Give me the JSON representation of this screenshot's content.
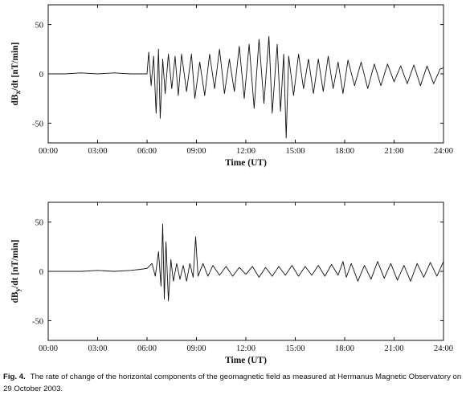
{
  "chart_data": [
    {
      "type": "line",
      "title": "",
      "xlabel": "Time (UT)",
      "ylabel": "dBx/dt [nT/min]",
      "ylabel_main": "dB",
      "ylabel_sub": "x",
      "ylabel_rest": "/dt [nT/min]",
      "xlim": [
        0,
        24
      ],
      "ylim": [
        -70,
        70
      ],
      "xticks": [
        0,
        3,
        6,
        9,
        12,
        15,
        18,
        21,
        24
      ],
      "xtick_labels": [
        "00:00",
        "03:00",
        "06:00",
        "09:00",
        "12:00",
        "15:00",
        "18:00",
        "21:00",
        "24:00"
      ],
      "yticks": [
        -50,
        0,
        50
      ],
      "ytick_labels": [
        "-50",
        "0",
        "50"
      ],
      "grid": false,
      "series": [
        {
          "color": "#111111",
          "x": [
            0,
            1,
            2,
            3,
            4,
            5,
            6,
            6.1,
            6.25,
            6.4,
            6.55,
            6.7,
            6.8,
            6.95,
            7.1,
            7.3,
            7.5,
            7.7,
            7.9,
            8.1,
            8.4,
            8.7,
            8.9,
            9.2,
            9.5,
            9.8,
            10.1,
            10.4,
            10.7,
            11,
            11.3,
            11.6,
            11.9,
            12.2,
            12.5,
            12.8,
            13.1,
            13.4,
            13.6,
            13.9,
            14.1,
            14.3,
            14.45,
            14.6,
            14.9,
            15.2,
            15.5,
            15.8,
            16.1,
            16.4,
            16.7,
            17,
            17.3,
            17.6,
            17.9,
            18.2,
            18.6,
            19,
            19.4,
            19.8,
            20.2,
            20.6,
            21,
            21.4,
            21.8,
            22.2,
            22.6,
            23,
            23.4,
            23.8,
            24
          ],
          "y": [
            0,
            0,
            1,
            0,
            1,
            0,
            0,
            22,
            -12,
            18,
            -40,
            25,
            -45,
            15,
            -20,
            20,
            -15,
            18,
            -22,
            20,
            -18,
            20,
            -25,
            12,
            -22,
            20,
            -15,
            25,
            -20,
            15,
            -18,
            28,
            -25,
            30,
            -35,
            35,
            -30,
            38,
            -40,
            30,
            -38,
            20,
            -65,
            18,
            -22,
            20,
            -15,
            15,
            -20,
            15,
            -18,
            18,
            -15,
            12,
            -20,
            14,
            -12,
            12,
            -15,
            10,
            -12,
            10,
            -8,
            8,
            -10,
            9,
            -12,
            8,
            -10,
            5,
            6
          ]
        }
      ]
    },
    {
      "type": "line",
      "title": "",
      "xlabel": "Time (UT)",
      "ylabel": "dBy/dt [nT/min]",
      "ylabel_main": "dB",
      "ylabel_sub": "y",
      "ylabel_rest": "/dt [nT/min]",
      "xlim": [
        0,
        24
      ],
      "ylim": [
        -70,
        70
      ],
      "xticks": [
        0,
        3,
        6,
        9,
        12,
        15,
        18,
        21,
        24
      ],
      "xtick_labels": [
        "00:00",
        "03:00",
        "06:00",
        "09:00",
        "12:00",
        "15:00",
        "18:00",
        "21:00",
        "24:00"
      ],
      "yticks": [
        -50,
        0,
        50
      ],
      "ytick_labels": [
        "-50",
        "0",
        "50"
      ],
      "grid": false,
      "series": [
        {
          "color": "#111111",
          "x": [
            0,
            1,
            2,
            3,
            4,
            5,
            5.6,
            6,
            6.3,
            6.5,
            6.7,
            6.85,
            6.95,
            7.05,
            7.15,
            7.3,
            7.45,
            7.6,
            7.8,
            8.0,
            8.2,
            8.4,
            8.6,
            8.8,
            8.95,
            9.1,
            9.4,
            9.7,
            10,
            10.4,
            10.8,
            11.2,
            11.6,
            12,
            12.4,
            12.8,
            13.2,
            13.6,
            14,
            14.4,
            14.8,
            15.2,
            15.6,
            16,
            16.4,
            16.8,
            17.2,
            17.6,
            17.9,
            18.1,
            18.4,
            18.8,
            19.2,
            19.6,
            20,
            20.4,
            20.8,
            21.2,
            21.6,
            22,
            22.4,
            22.8,
            23.2,
            23.6,
            24
          ],
          "y": [
            0,
            0,
            0,
            1,
            0,
            1,
            2,
            3,
            8,
            -5,
            20,
            -15,
            48,
            -28,
            30,
            -30,
            12,
            -10,
            8,
            -8,
            6,
            -10,
            8,
            -6,
            35,
            -5,
            8,
            -5,
            6,
            -4,
            5,
            -5,
            4,
            -3,
            5,
            -6,
            4,
            -5,
            5,
            -4,
            6,
            -5,
            5,
            -4,
            6,
            -5,
            7,
            -4,
            10,
            -6,
            8,
            -10,
            6,
            -8,
            10,
            -7,
            8,
            -9,
            6,
            -10,
            8,
            -6,
            9,
            -5,
            10
          ]
        }
      ]
    }
  ],
  "caption": {
    "label": "Fig.   4.",
    "text": "The rate of change of the horizontal components of the geomagnetic field as measured at Hermanus Magnetic Observatory on 29 October 2003."
  }
}
